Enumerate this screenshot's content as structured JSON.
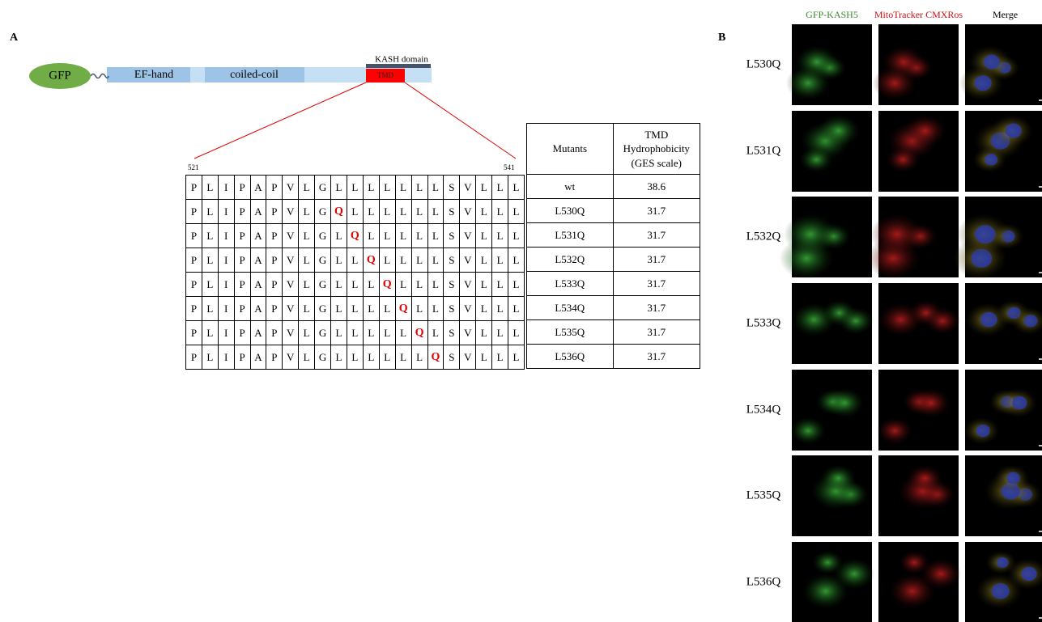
{
  "panel_a": {
    "label": "A",
    "construct": {
      "gfp": "GFP",
      "domains": [
        "EF-hand",
        "coiled-coil"
      ],
      "kash": "KASH domain",
      "tmd": "TMD"
    },
    "sequence": {
      "start": "521",
      "end": "541",
      "rows": [
        [
          "P",
          "L",
          "I",
          "P",
          "A",
          "P",
          "V",
          "L",
          "G",
          "L",
          "L",
          "L",
          "L",
          "L",
          "L",
          "L",
          "S",
          "V",
          "L",
          "L",
          "L"
        ],
        [
          "P",
          "L",
          "I",
          "P",
          "A",
          "P",
          "V",
          "L",
          "G",
          "Q",
          "L",
          "L",
          "L",
          "L",
          "L",
          "L",
          "S",
          "V",
          "L",
          "L",
          "L"
        ],
        [
          "P",
          "L",
          "I",
          "P",
          "A",
          "P",
          "V",
          "L",
          "G",
          "L",
          "Q",
          "L",
          "L",
          "L",
          "L",
          "L",
          "S",
          "V",
          "L",
          "L",
          "L"
        ],
        [
          "P",
          "L",
          "I",
          "P",
          "A",
          "P",
          "V",
          "L",
          "G",
          "L",
          "L",
          "Q",
          "L",
          "L",
          "L",
          "L",
          "S",
          "V",
          "L",
          "L",
          "L"
        ],
        [
          "P",
          "L",
          "I",
          "P",
          "A",
          "P",
          "V",
          "L",
          "G",
          "L",
          "L",
          "L",
          "Q",
          "L",
          "L",
          "L",
          "S",
          "V",
          "L",
          "L",
          "L"
        ],
        [
          "P",
          "L",
          "I",
          "P",
          "A",
          "P",
          "V",
          "L",
          "G",
          "L",
          "L",
          "L",
          "L",
          "Q",
          "L",
          "L",
          "S",
          "V",
          "L",
          "L",
          "L"
        ],
        [
          "P",
          "L",
          "I",
          "P",
          "A",
          "P",
          "V",
          "L",
          "G",
          "L",
          "L",
          "L",
          "L",
          "L",
          "Q",
          "L",
          "S",
          "V",
          "L",
          "L",
          "L"
        ],
        [
          "P",
          "L",
          "I",
          "P",
          "A",
          "P",
          "V",
          "L",
          "G",
          "L",
          "L",
          "L",
          "L",
          "L",
          "L",
          "Q",
          "S",
          "V",
          "L",
          "L",
          "L"
        ]
      ]
    },
    "table": {
      "header": [
        "Mutants",
        "TMD Hydrophobicity (GES scale)"
      ],
      "rows": [
        [
          "wt",
          38.6
        ],
        [
          "L530Q",
          31.7
        ],
        [
          "L531Q",
          31.7
        ],
        [
          "L532Q",
          31.7
        ],
        [
          "L533Q",
          31.7
        ],
        [
          "L534Q",
          31.7
        ],
        [
          "L535Q",
          31.7
        ],
        [
          "L536Q",
          31.7
        ]
      ]
    }
  },
  "panel_b": {
    "label": "B",
    "columns": [
      "GFP-KASH5",
      "MitoTracker CMXRos",
      "Merge"
    ],
    "rows": [
      "L530Q",
      "L531Q",
      "L532Q",
      "L533Q",
      "L534Q",
      "L535Q",
      "L536Q"
    ]
  }
}
